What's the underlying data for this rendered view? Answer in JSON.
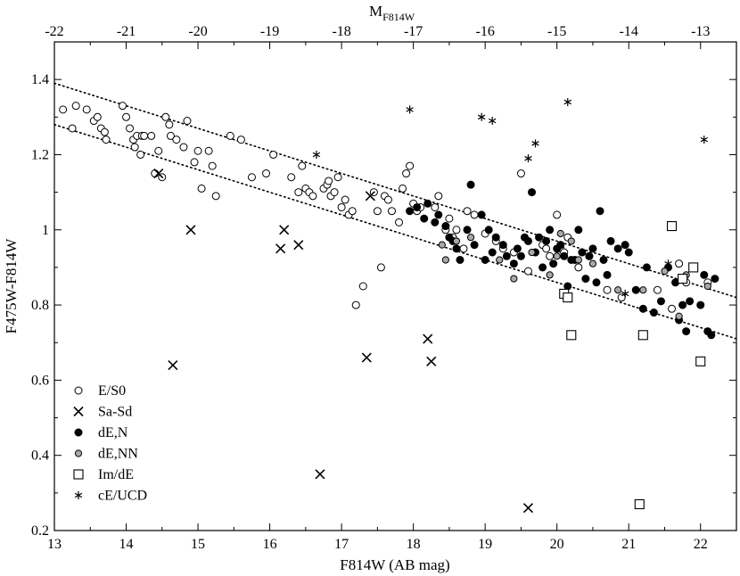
{
  "chart_data": {
    "type": "scatter",
    "title": "",
    "xlabel": "F814W (AB mag)",
    "ylabel": "F475W-F814W",
    "top_xlabel_main": "M",
    "top_xlabel_sub": "F814W",
    "xlim": [
      13,
      22.5
    ],
    "ylim": [
      0.2,
      1.5
    ],
    "top_xlim": [
      -22,
      -12.5
    ],
    "x_ticks": [
      "13",
      "14",
      "15",
      "16",
      "17",
      "18",
      "19",
      "20",
      "21",
      "22"
    ],
    "x_tick_values": [
      13,
      14,
      15,
      16,
      17,
      18,
      19,
      20,
      21,
      22
    ],
    "y_ticks": [
      "0.2",
      "0.4",
      "0.6",
      "0.8",
      "1",
      "1.2",
      "1.4"
    ],
    "y_tick_values": [
      0.2,
      0.4,
      0.6,
      0.8,
      1.0,
      1.2,
      1.4
    ],
    "top_ticks": [
      "-22",
      "-21",
      "-20",
      "-19",
      "-18",
      "-17",
      "-16",
      "-15",
      "-14",
      "-13"
    ],
    "top_tick_values": [
      -22,
      -21,
      -20,
      -19,
      -18,
      -17,
      -16,
      -15,
      -14,
      -13
    ],
    "legend_position": "bottom-left",
    "reference_lines": [
      {
        "name": "upper dotted",
        "x": [
          13,
          22.5
        ],
        "y": [
          1.39,
          0.82
        ]
      },
      {
        "name": "lower dotted",
        "x": [
          13,
          22.5
        ],
        "y": [
          1.28,
          0.71
        ]
      }
    ],
    "series": [
      {
        "name": "E/S0",
        "marker": "open-circle",
        "points": [
          [
            13.12,
            1.32
          ],
          [
            13.25,
            1.27
          ],
          [
            13.3,
            1.33
          ],
          [
            13.45,
            1.32
          ],
          [
            13.55,
            1.29
          ],
          [
            13.6,
            1.3
          ],
          [
            13.65,
            1.27
          ],
          [
            13.7,
            1.26
          ],
          [
            13.72,
            1.24
          ],
          [
            13.95,
            1.33
          ],
          [
            14.0,
            1.3
          ],
          [
            14.05,
            1.27
          ],
          [
            14.1,
            1.24
          ],
          [
            14.12,
            1.22
          ],
          [
            14.15,
            1.25
          ],
          [
            14.2,
            1.2
          ],
          [
            14.22,
            1.25
          ],
          [
            14.25,
            1.25
          ],
          [
            14.35,
            1.25
          ],
          [
            14.4,
            1.15
          ],
          [
            14.45,
            1.21
          ],
          [
            14.5,
            1.14
          ],
          [
            14.55,
            1.3
          ],
          [
            14.6,
            1.28
          ],
          [
            14.62,
            1.25
          ],
          [
            14.7,
            1.24
          ],
          [
            14.8,
            1.22
          ],
          [
            14.85,
            1.29
          ],
          [
            14.95,
            1.18
          ],
          [
            15.0,
            1.21
          ],
          [
            15.05,
            1.11
          ],
          [
            15.15,
            1.21
          ],
          [
            15.2,
            1.17
          ],
          [
            15.25,
            1.09
          ],
          [
            15.45,
            1.25
          ],
          [
            15.6,
            1.24
          ],
          [
            15.75,
            1.14
          ],
          [
            15.95,
            1.15
          ],
          [
            16.05,
            1.2
          ],
          [
            16.3,
            1.14
          ],
          [
            16.4,
            1.1
          ],
          [
            16.45,
            1.17
          ],
          [
            16.5,
            1.11
          ],
          [
            16.55,
            1.1
          ],
          [
            16.6,
            1.09
          ],
          [
            16.75,
            1.11
          ],
          [
            16.8,
            1.12
          ],
          [
            16.82,
            1.13
          ],
          [
            16.85,
            1.09
          ],
          [
            16.9,
            1.1
          ],
          [
            16.95,
            1.14
          ],
          [
            17.0,
            1.06
          ],
          [
            17.05,
            1.08
          ],
          [
            17.1,
            1.04
          ],
          [
            17.15,
            1.05
          ],
          [
            17.2,
            0.8
          ],
          [
            17.3,
            0.85
          ],
          [
            17.45,
            1.1
          ],
          [
            17.5,
            1.05
          ],
          [
            17.55,
            0.9
          ],
          [
            17.6,
            1.09
          ],
          [
            17.65,
            1.08
          ],
          [
            17.7,
            1.05
          ],
          [
            17.8,
            1.02
          ],
          [
            17.85,
            1.11
          ],
          [
            17.9,
            1.15
          ],
          [
            17.95,
            1.17
          ],
          [
            18.0,
            1.07
          ],
          [
            18.05,
            1.05
          ],
          [
            18.1,
            1.06
          ],
          [
            18.3,
            1.06
          ],
          [
            18.35,
            1.09
          ],
          [
            18.45,
            1.0
          ],
          [
            18.5,
            1.03
          ],
          [
            18.55,
            0.98
          ],
          [
            18.6,
            1.0
          ],
          [
            18.7,
            0.95
          ],
          [
            18.75,
            1.05
          ],
          [
            18.85,
            1.04
          ],
          [
            19.0,
            0.99
          ],
          [
            19.15,
            0.97
          ],
          [
            19.25,
            0.95
          ],
          [
            19.4,
            0.94
          ],
          [
            19.5,
            1.15
          ],
          [
            19.6,
            0.89
          ],
          [
            19.8,
            0.96
          ],
          [
            19.85,
            0.95
          ],
          [
            19.9,
            0.93
          ],
          [
            20.0,
            1.04
          ],
          [
            20.05,
            0.95
          ],
          [
            20.1,
            0.94
          ],
          [
            20.15,
            0.98
          ],
          [
            20.3,
            0.9
          ],
          [
            20.45,
            0.93
          ],
          [
            20.7,
            0.84
          ],
          [
            20.9,
            0.82
          ],
          [
            21.4,
            0.84
          ],
          [
            21.6,
            0.79
          ],
          [
            21.7,
            0.91
          ],
          [
            21.8,
            0.86
          ],
          [
            22.1,
            0.86
          ]
        ]
      },
      {
        "name": "Sa-Sd",
        "marker": "cross",
        "points": [
          [
            14.45,
            1.15
          ],
          [
            14.65,
            0.64
          ],
          [
            14.9,
            1.0
          ],
          [
            16.15,
            0.95
          ],
          [
            16.2,
            1.0
          ],
          [
            16.4,
            0.96
          ],
          [
            16.7,
            0.35
          ],
          [
            17.35,
            0.66
          ],
          [
            17.4,
            1.09
          ],
          [
            18.2,
            0.71
          ],
          [
            18.25,
            0.65
          ],
          [
            19.6,
            0.26
          ]
        ]
      },
      {
        "name": "dE,N",
        "marker": "filled-circle",
        "points": [
          [
            17.95,
            1.05
          ],
          [
            18.05,
            1.06
          ],
          [
            18.15,
            1.03
          ],
          [
            18.2,
            1.07
          ],
          [
            18.3,
            1.02
          ],
          [
            18.35,
            1.04
          ],
          [
            18.45,
            1.01
          ],
          [
            18.5,
            0.98
          ],
          [
            18.55,
            0.97
          ],
          [
            18.6,
            0.95
          ],
          [
            18.65,
            0.92
          ],
          [
            18.75,
            1.0
          ],
          [
            18.8,
            1.12
          ],
          [
            18.85,
            0.96
          ],
          [
            18.95,
            1.04
          ],
          [
            19.0,
            0.92
          ],
          [
            19.05,
            1.0
          ],
          [
            19.1,
            0.94
          ],
          [
            19.15,
            0.98
          ],
          [
            19.25,
            0.96
          ],
          [
            19.3,
            0.93
          ],
          [
            19.4,
            0.91
          ],
          [
            19.45,
            0.95
          ],
          [
            19.5,
            0.93
          ],
          [
            19.55,
            0.98
          ],
          [
            19.6,
            0.97
          ],
          [
            19.65,
            1.1
          ],
          [
            19.7,
            0.94
          ],
          [
            19.75,
            0.98
          ],
          [
            19.8,
            0.9
          ],
          [
            19.85,
            0.97
          ],
          [
            19.9,
            1.0
          ],
          [
            19.95,
            0.91
          ],
          [
            20.0,
            0.95
          ],
          [
            20.05,
            0.96
          ],
          [
            20.1,
            0.93
          ],
          [
            20.15,
            0.85
          ],
          [
            20.2,
            0.92
          ],
          [
            20.25,
            0.92
          ],
          [
            20.3,
            1.0
          ],
          [
            20.35,
            0.94
          ],
          [
            20.4,
            0.87
          ],
          [
            20.45,
            0.93
          ],
          [
            20.5,
            0.95
          ],
          [
            20.55,
            0.86
          ],
          [
            20.6,
            1.05
          ],
          [
            20.65,
            0.92
          ],
          [
            20.7,
            0.88
          ],
          [
            20.75,
            0.97
          ],
          [
            20.85,
            0.95
          ],
          [
            20.95,
            0.96
          ],
          [
            21.0,
            0.94
          ],
          [
            21.1,
            0.84
          ],
          [
            21.2,
            0.79
          ],
          [
            21.25,
            0.9
          ],
          [
            21.35,
            0.78
          ],
          [
            21.45,
            0.81
          ],
          [
            21.55,
            0.9
          ],
          [
            21.65,
            0.86
          ],
          [
            21.7,
            0.76
          ],
          [
            21.75,
            0.8
          ],
          [
            21.8,
            0.73
          ],
          [
            21.85,
            0.81
          ],
          [
            22.0,
            0.8
          ],
          [
            22.05,
            0.88
          ],
          [
            22.1,
            0.73
          ],
          [
            22.15,
            0.72
          ],
          [
            22.2,
            0.87
          ]
        ]
      },
      {
        "name": "dE,NN",
        "marker": "gray-circle",
        "points": [
          [
            18.4,
            0.96
          ],
          [
            18.45,
            0.92
          ],
          [
            18.6,
            0.97
          ],
          [
            18.8,
            0.98
          ],
          [
            19.2,
            0.92
          ],
          [
            19.4,
            0.87
          ],
          [
            19.65,
            0.94
          ],
          [
            19.9,
            0.88
          ],
          [
            20.0,
            0.93
          ],
          [
            20.05,
            0.99
          ],
          [
            20.1,
            0.83
          ],
          [
            20.2,
            0.97
          ],
          [
            20.3,
            0.92
          ],
          [
            20.5,
            0.91
          ],
          [
            20.85,
            0.84
          ],
          [
            21.2,
            0.84
          ],
          [
            21.5,
            0.89
          ],
          [
            21.7,
            0.77
          ],
          [
            21.8,
            0.88
          ],
          [
            22.1,
            0.85
          ]
        ]
      },
      {
        "name": "Im/dE",
        "marker": "open-square",
        "points": [
          [
            20.1,
            0.83
          ],
          [
            20.15,
            0.82
          ],
          [
            20.2,
            0.72
          ],
          [
            21.15,
            0.27
          ],
          [
            21.2,
            0.72
          ],
          [
            21.6,
            1.01
          ],
          [
            21.75,
            0.87
          ],
          [
            21.9,
            0.9
          ],
          [
            22.0,
            0.65
          ]
        ]
      },
      {
        "name": "cE/UCD",
        "marker": "asterisk",
        "points": [
          [
            16.65,
            1.2
          ],
          [
            17.95,
            1.32
          ],
          [
            18.95,
            1.3
          ],
          [
            19.1,
            1.29
          ],
          [
            19.6,
            1.19
          ],
          [
            19.7,
            1.23
          ],
          [
            20.15,
            1.34
          ],
          [
            20.95,
            0.83
          ],
          [
            21.55,
            0.91
          ],
          [
            22.05,
            1.24
          ]
        ]
      }
    ]
  }
}
